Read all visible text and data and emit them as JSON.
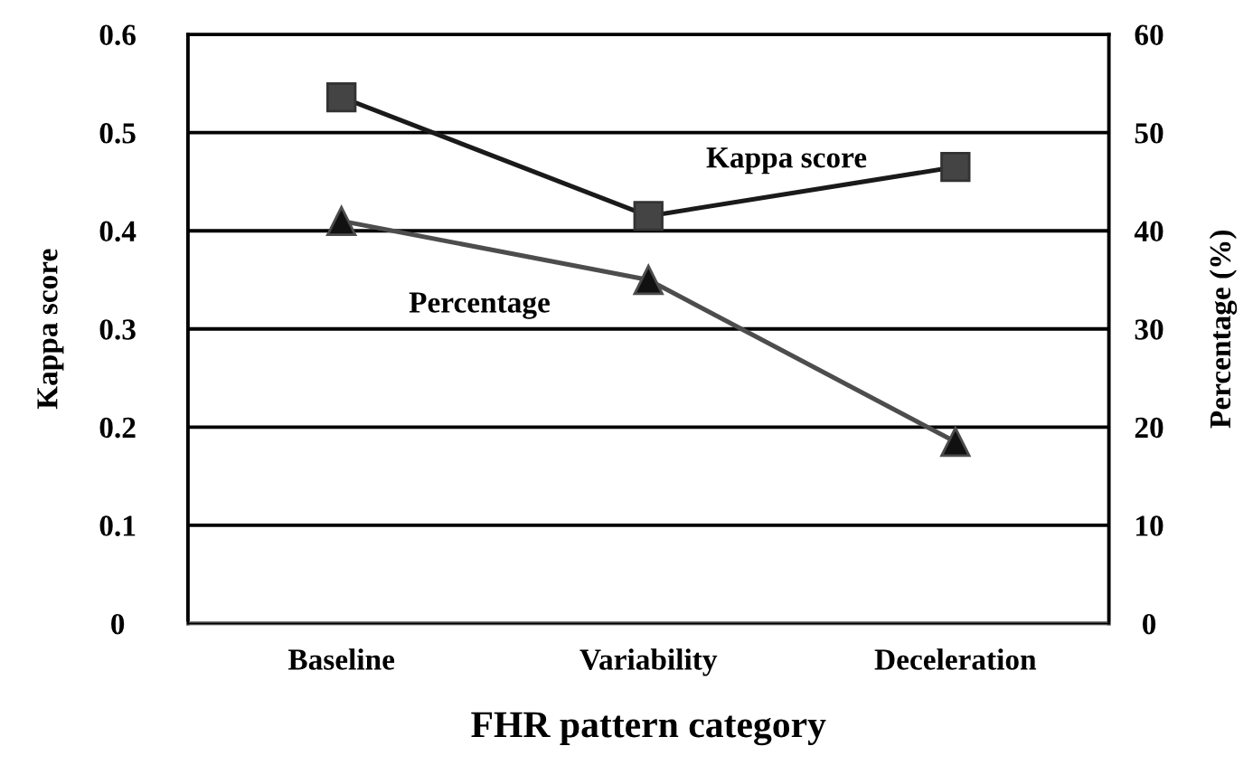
{
  "chart_data": {
    "type": "line",
    "xlabel": "FHR pattern category",
    "ylabel": "Kappa score",
    "y2label": "Percentage (%)",
    "categories": [
      "Baseline",
      "Variability",
      "Deceleration"
    ],
    "series": [
      {
        "name": "Kappa score",
        "color": "#1a1a1a",
        "marker": "square",
        "values": [
          0.536,
          0.415,
          0.465
        ]
      },
      {
        "name": "Percentage",
        "color": "#4d4d4d",
        "marker": "triangle",
        "axis": "y2",
        "values": [
          41,
          35,
          18.5
        ]
      }
    ],
    "ylim": [
      0,
      0.6
    ],
    "yticks": [
      0,
      0.1,
      0.2,
      0.3,
      0.4,
      0.5,
      0.6
    ],
    "y2lim": [
      0,
      60
    ],
    "y2ticks": [
      0,
      10,
      20,
      30,
      40,
      50,
      60
    ],
    "grid": "y",
    "legend": false
  }
}
